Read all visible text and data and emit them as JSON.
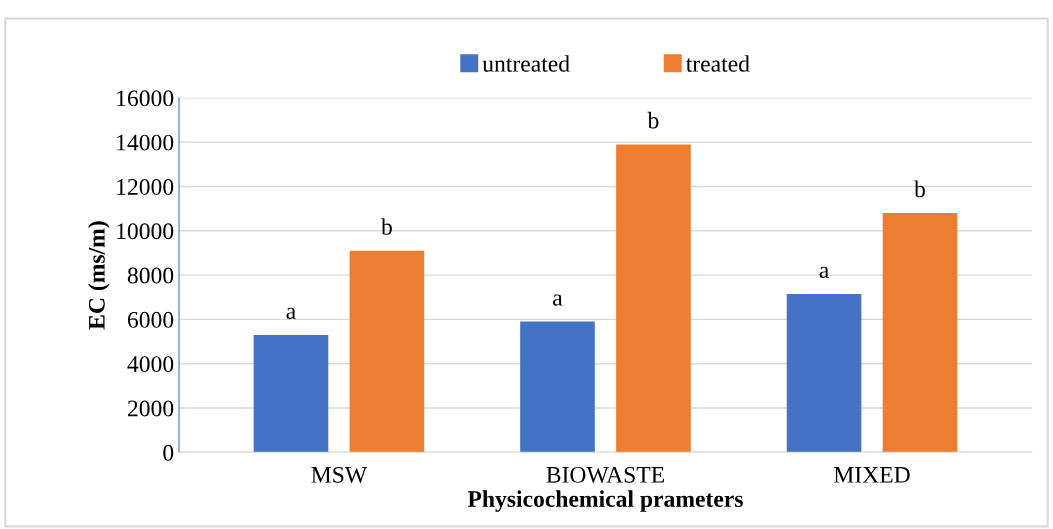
{
  "chart_data": {
    "type": "bar",
    "xlabel": "Physicochemical prameters",
    "ylabel": "EC (ms/m)",
    "categories": [
      "MSW",
      "BIOWASTE",
      "MIXED"
    ],
    "series": [
      {
        "name": "untreated",
        "color": "#4472c4",
        "values": [
          5300,
          5900,
          7150
        ],
        "value_labels": [
          "a",
          "a",
          "a"
        ]
      },
      {
        "name": "treated",
        "color": "#ed7d31",
        "values": [
          9100,
          13900,
          10800
        ],
        "value_labels": [
          "b",
          "b",
          "b"
        ]
      }
    ],
    "ylim": [
      0,
      16000
    ],
    "yticks": [
      0,
      2000,
      4000,
      6000,
      8000,
      10000,
      12000,
      14000,
      16000
    ],
    "grid": "y",
    "legend": "top"
  }
}
